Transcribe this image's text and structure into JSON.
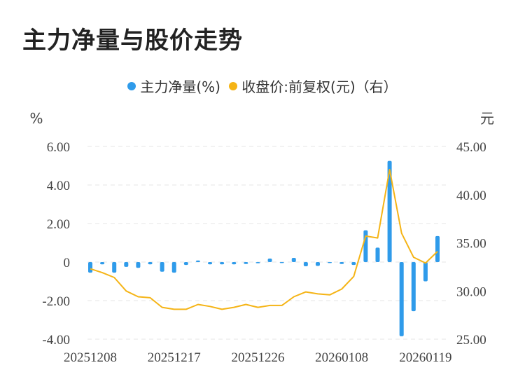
{
  "title": "主力净量与股价走势",
  "legend": [
    {
      "label": "主力净量(%)",
      "color": "#2f9bea"
    },
    {
      "label": "收盘价:前复权(元)（右）",
      "color": "#f5b416"
    }
  ],
  "chart_data": {
    "type": "bar+line",
    "left_axis": {
      "unit": "%",
      "min": -4,
      "max": 6,
      "ticks": [
        "6.00",
        "4.00",
        "2.00",
        "0",
        "-2.00",
        "-4.00"
      ],
      "tick_values": [
        6,
        4,
        2,
        0,
        -2,
        -4
      ]
    },
    "right_axis": {
      "unit": "元",
      "min": 25,
      "max": 45,
      "ticks": [
        "45.00",
        "40.00",
        "35.00",
        "30.00",
        "25.00"
      ],
      "tick_values": [
        45,
        40,
        35,
        30,
        25
      ]
    },
    "x_tick_labels": [
      "20251208",
      "20251217",
      "20251226",
      "20260108",
      "20260119"
    ],
    "x_tick_indices": [
      0,
      7,
      14,
      21,
      28
    ],
    "grid": "horizontal dashed",
    "legend_position": "top-center",
    "series": [
      {
        "name": "主力净量(%)",
        "type": "bar",
        "color": "#2f9bea",
        "values": [
          -0.55,
          -0.12,
          -0.55,
          -0.25,
          -0.3,
          -0.12,
          -0.5,
          -0.55,
          -0.15,
          0.08,
          -0.12,
          -0.12,
          -0.12,
          -0.1,
          -0.06,
          0.18,
          -0.05,
          0.22,
          -0.22,
          -0.2,
          -0.05,
          -0.1,
          -0.15,
          1.65,
          0.75,
          5.25,
          -3.85,
          -2.55,
          -1.0,
          1.35
        ]
      },
      {
        "name": "收盘价:前复权(元)（右）",
        "type": "line",
        "color": "#f5b416",
        "values": [
          32.3,
          31.9,
          31.4,
          30.0,
          29.4,
          29.3,
          28.3,
          28.1,
          28.1,
          28.6,
          28.4,
          28.1,
          28.3,
          28.6,
          28.3,
          28.5,
          28.5,
          29.4,
          29.9,
          29.7,
          29.6,
          30.2,
          31.5,
          35.7,
          35.5,
          42.6,
          36.0,
          33.5,
          32.9,
          34.1
        ]
      }
    ]
  }
}
